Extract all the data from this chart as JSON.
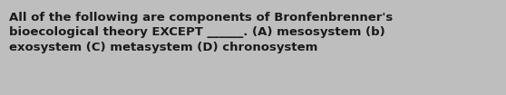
{
  "text": "All of the following are components of Bronfenbrenner's\nbioecological theory EXCEPT ______. (A) mesosystem (b)\nexosystem (C) metasystem (D) chronosystem",
  "background_color": "#bebebe",
  "text_color": "#1a1a1a",
  "font_size": 9.5,
  "fig_width": 5.58,
  "fig_height": 1.05,
  "dpi": 100
}
